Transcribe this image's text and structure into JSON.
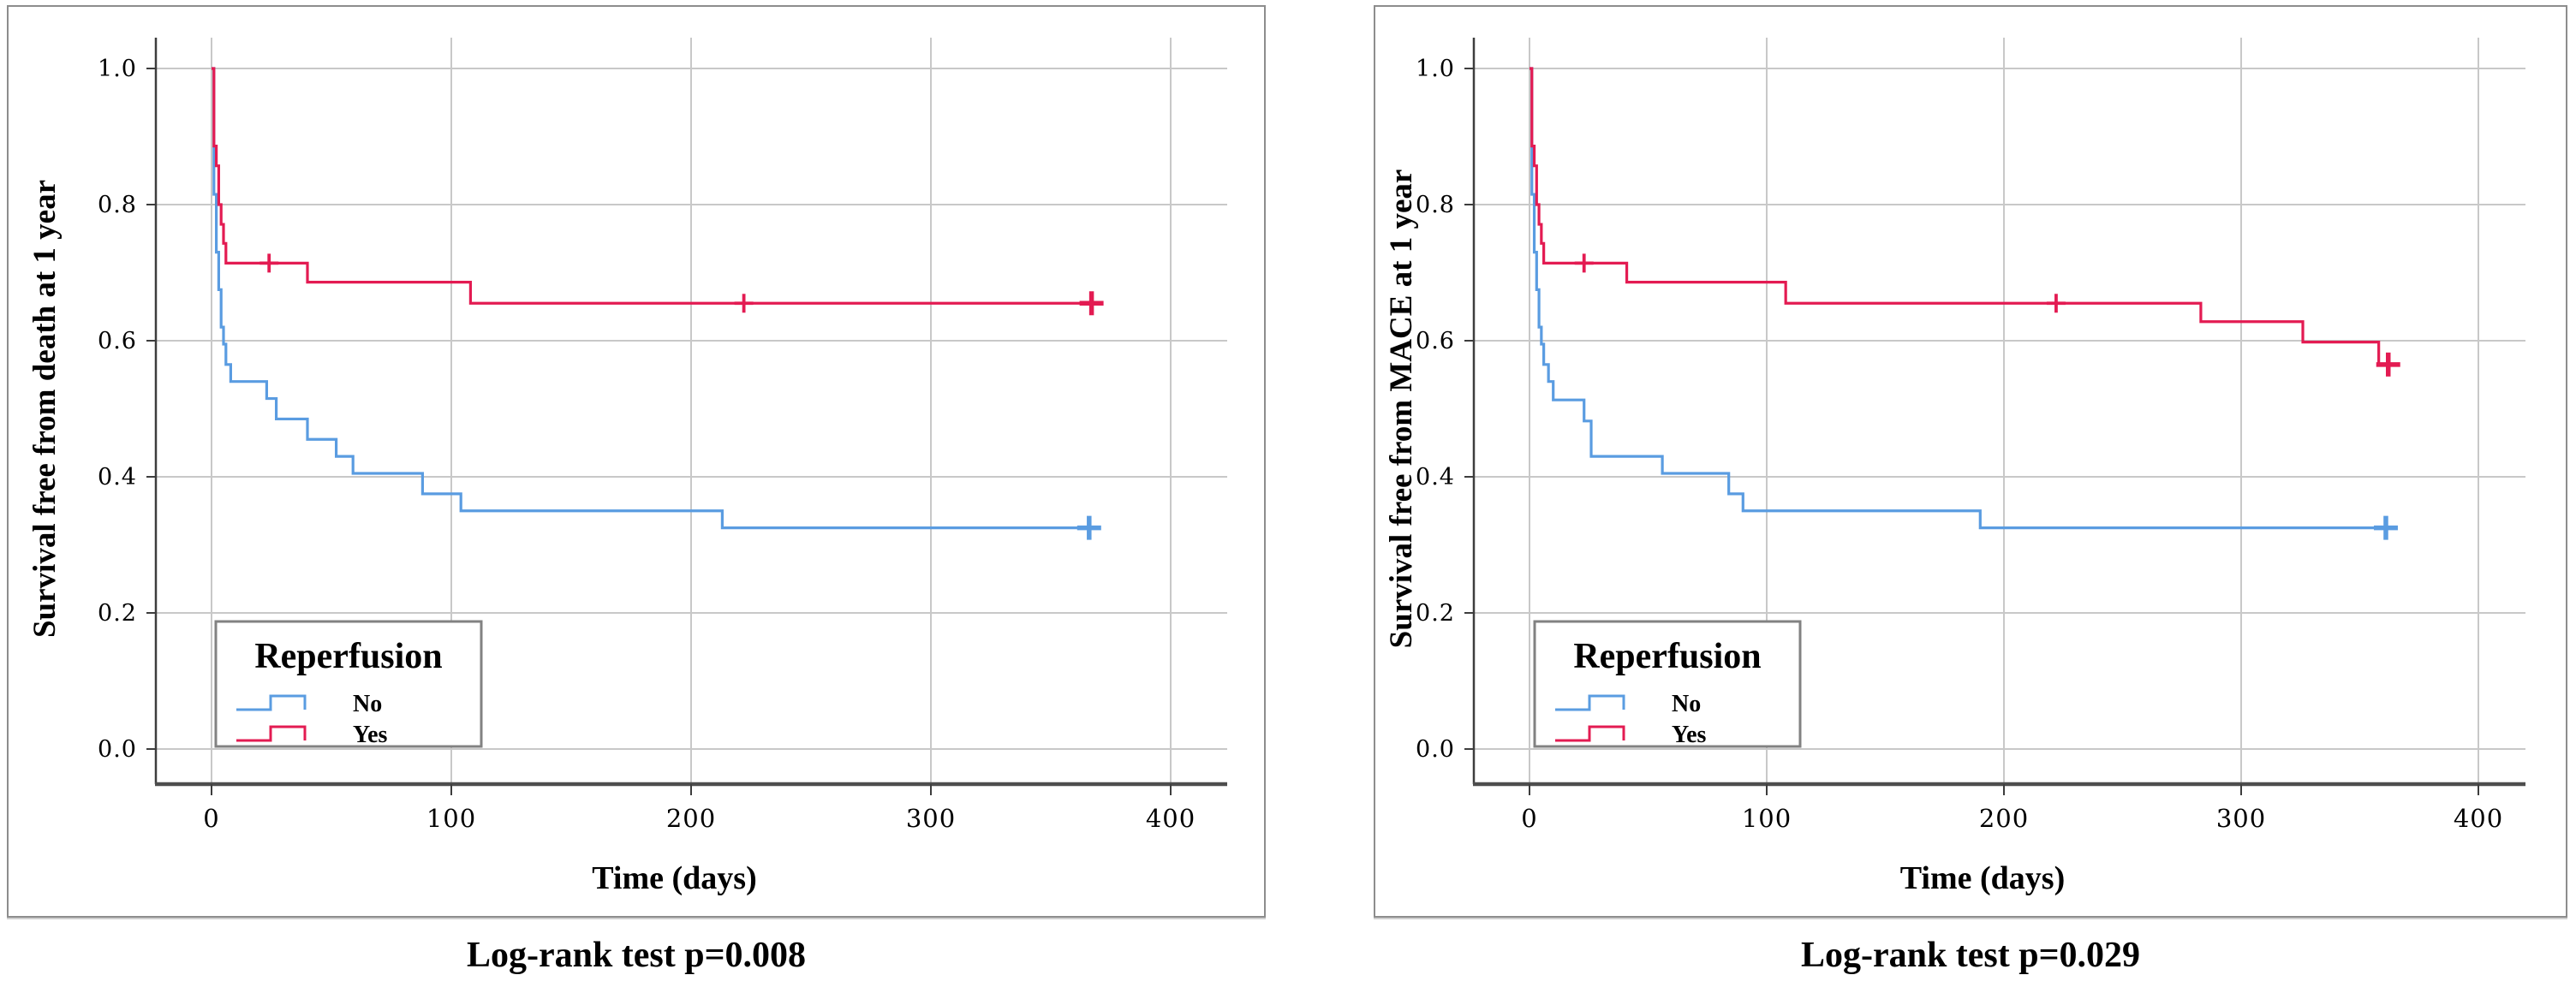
{
  "figure_type": "kaplan-meier-survival-curves",
  "styles": {
    "no_color": "#5a9ce1",
    "yes_color": "#e31b52",
    "grid_color": "#c8c8c8",
    "axis_color": "#3d3d3d",
    "spine_bottom_color": "#4d4d4d",
    "panel_border_color": "#8d8d8d",
    "legend_border_color": "#828282",
    "text_color": "#000000",
    "plot_bg": "#ffffff"
  },
  "chart_data": [
    {
      "type": "line",
      "subtype": "kaplan-meier-step",
      "ylabel": "Survival free from death at 1 year",
      "xlabel": "Time (days)",
      "caption": "Log-rank test p=0.008",
      "xticks": [
        0,
        100,
        200,
        300,
        400
      ],
      "yticks": [
        0.0,
        0.2,
        0.4,
        0.6,
        0.8,
        1.0
      ],
      "xlim": [
        -23,
        424
      ],
      "ylim": [
        -0.05,
        1.04
      ],
      "grid": true,
      "legend": {
        "title": "Reperfusion",
        "position": "lower-left"
      },
      "series": [
        {
          "label": "No",
          "color_key": "no_color",
          "steps": [
            [
              0,
              1.0
            ],
            [
              1,
              0.815
            ],
            [
              2,
              0.73
            ],
            [
              3,
              0.675
            ],
            [
              4,
              0.62
            ],
            [
              5,
              0.595
            ],
            [
              6,
              0.565
            ],
            [
              8,
              0.54
            ],
            [
              23,
              0.515
            ],
            [
              27,
              0.485
            ],
            [
              40,
              0.455
            ],
            [
              52,
              0.43
            ],
            [
              59,
              0.405
            ],
            [
              88,
              0.375
            ],
            [
              104,
              0.35
            ],
            [
              213,
              0.325
            ]
          ],
          "end_day": 366,
          "censors": [
            [
              366,
              0.325
            ]
          ]
        },
        {
          "label": "Yes",
          "color_key": "yes_color",
          "steps": [
            [
              0,
              1.0
            ],
            [
              1,
              0.886
            ],
            [
              2,
              0.857
            ],
            [
              3,
              0.8
            ],
            [
              4,
              0.771
            ],
            [
              5,
              0.743
            ],
            [
              6,
              0.714
            ],
            [
              40,
              0.686
            ],
            [
              108,
              0.655
            ]
          ],
          "end_day": 367,
          "censors": [
            [
              24,
              0.714
            ],
            [
              222,
              0.655
            ],
            [
              367,
              0.655
            ]
          ]
        }
      ]
    },
    {
      "type": "line",
      "subtype": "kaplan-meier-step",
      "ylabel": "Survival free from MACE at 1 year",
      "xlabel": "Time (days)",
      "caption": "Log-rank test p=0.029",
      "xticks": [
        0,
        100,
        200,
        300,
        400
      ],
      "yticks": [
        0.0,
        0.2,
        0.4,
        0.6,
        0.8,
        1.0
      ],
      "xlim": [
        -23,
        424
      ],
      "ylim": [
        -0.05,
        1.04
      ],
      "grid": true,
      "legend": {
        "title": "Reperfusion",
        "position": "lower-left"
      },
      "series": [
        {
          "label": "No",
          "color_key": "no_color",
          "steps": [
            [
              0,
              1.0
            ],
            [
              1,
              0.815
            ],
            [
              2,
              0.73
            ],
            [
              3,
              0.675
            ],
            [
              4,
              0.62
            ],
            [
              5,
              0.595
            ],
            [
              6,
              0.565
            ],
            [
              8,
              0.54
            ],
            [
              10,
              0.513
            ],
            [
              23,
              0.482
            ],
            [
              26,
              0.43
            ],
            [
              56,
              0.405
            ],
            [
              84,
              0.375
            ],
            [
              90,
              0.35
            ],
            [
              190,
              0.325
            ]
          ],
          "end_day": 361,
          "censors": [
            [
              361,
              0.325
            ]
          ]
        },
        {
          "label": "Yes",
          "color_key": "yes_color",
          "steps": [
            [
              0,
              1.0
            ],
            [
              1,
              0.886
            ],
            [
              2,
              0.857
            ],
            [
              3,
              0.8
            ],
            [
              4,
              0.771
            ],
            [
              5,
              0.743
            ],
            [
              6,
              0.714
            ],
            [
              41,
              0.686
            ],
            [
              108,
              0.655
            ],
            [
              283,
              0.628
            ],
            [
              326,
              0.598
            ],
            [
              358,
              0.565
            ]
          ],
          "end_day": 362,
          "censors": [
            [
              23,
              0.714
            ],
            [
              222,
              0.655
            ],
            [
              362,
              0.565
            ]
          ]
        }
      ]
    }
  ]
}
